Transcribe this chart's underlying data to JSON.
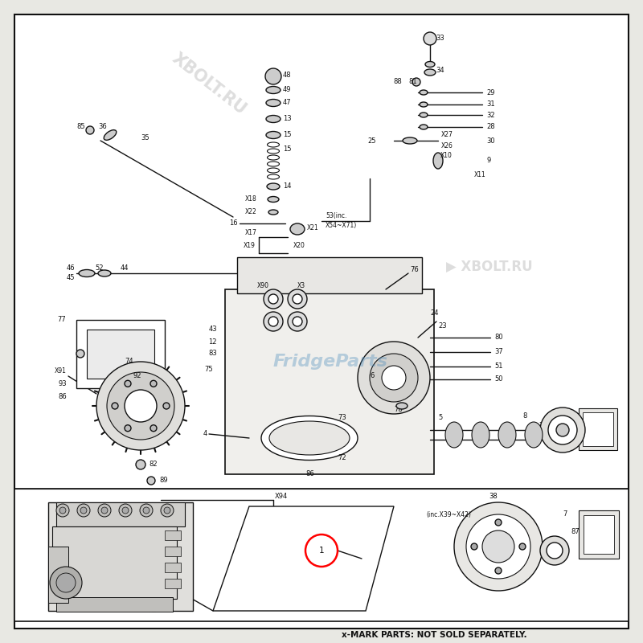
{
  "background_color": "#e8e8e3",
  "border_color": "#111111",
  "fig_width": 8.0,
  "fig_height": 8.0,
  "dpi": 100,
  "footer_text": "x-MARK PARTS: NOT SOLD SEPARATELY.",
  "watermark_top": "XBOLT.RU",
  "watermark_right": "XBOLT.RU",
  "watermark_center": "FridgeParts"
}
